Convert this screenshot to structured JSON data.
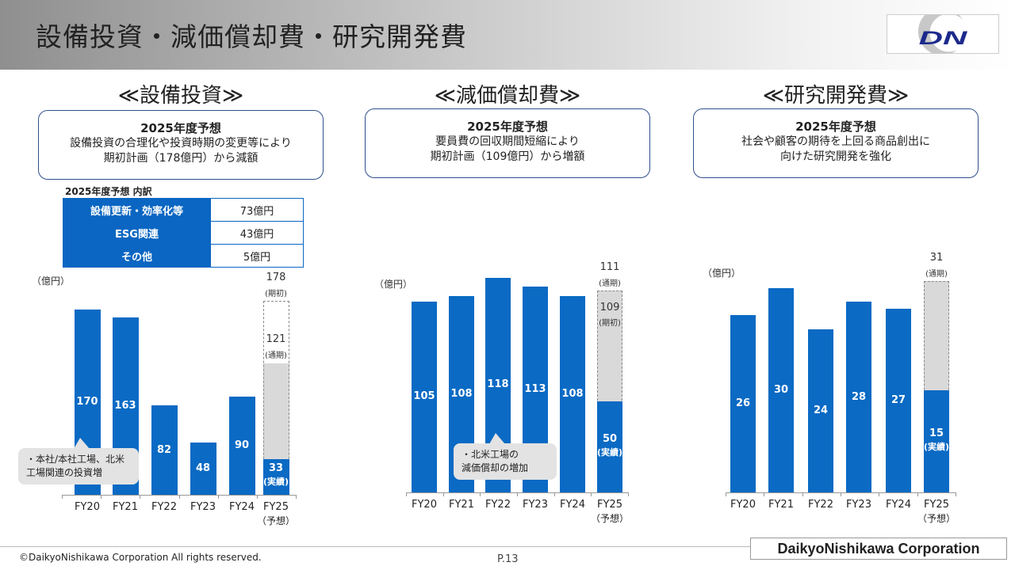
{
  "header": {
    "title": "設備投資・減価償却費・研究開発費",
    "logo_text": "DN"
  },
  "sections": [
    {
      "heading": "≪設備投資≫",
      "box_title": "2025年度予想",
      "box_lines": [
        "設備投資の合理化や投資時期の変更等により",
        "期初計画（178億円）から減額"
      ]
    },
    {
      "heading": "≪減価償却費≫",
      "box_title": "2025年度予想",
      "box_lines": [
        "要員費の回収期間短縮により",
        "期初計画（109億円）から増額"
      ]
    },
    {
      "heading": "≪研究開発費≫",
      "box_title": "2025年度予想",
      "box_lines": [
        "社会や顧客の期待を上回る商品創出に",
        "向けた研究開発を強化"
      ]
    }
  ],
  "breakdown": {
    "title": "2025年度予想 内訳",
    "rows": [
      {
        "label": "設備更新・効率化等",
        "value": "73億円"
      },
      {
        "label": "ESG関連",
        "value": "43億円"
      },
      {
        "label": "その他",
        "value": "5億円"
      }
    ]
  },
  "chart_data": [
    {
      "type": "bar",
      "title": "設備投資",
      "unit": "（億円）",
      "categories": [
        "FY20",
        "FY21",
        "FY22",
        "FY23",
        "FY24",
        "FY25"
      ],
      "fy25_sub": "（予想）",
      "values": [
        170,
        163,
        82,
        48,
        90,
        33
      ],
      "fy25_actual_label": "(実績)",
      "fy25_outer": {
        "value": 178,
        "label": "(期初)"
      },
      "fy25_inner": {
        "value": 121,
        "label": "(通期)"
      },
      "callout": [
        "・本社/本社工場、北米",
        "工場関連の投資増"
      ]
    },
    {
      "type": "bar",
      "title": "減価償却費",
      "unit": "（億円）",
      "categories": [
        "FY20",
        "FY21",
        "FY22",
        "FY23",
        "FY24",
        "FY25"
      ],
      "fy25_sub": "（予想）",
      "values": [
        105,
        108,
        118,
        113,
        108,
        50
      ],
      "fy25_actual_label": "(実績)",
      "fy25_outer": {
        "value": 111,
        "label": "(通期)"
      },
      "fy25_inner": {
        "value": 109,
        "label": "(期初)"
      },
      "callout": [
        "・北米工場の",
        "減価償却の増加"
      ]
    },
    {
      "type": "bar",
      "title": "研究開発費",
      "unit": "（億円）",
      "categories": [
        "FY20",
        "FY21",
        "FY22",
        "FY23",
        "FY24",
        "FY25"
      ],
      "fy25_sub": "（予想）",
      "values": [
        26,
        30,
        24,
        28,
        27,
        15
      ],
      "fy25_actual_label": "(実績)",
      "fy25_outer": {
        "value": 31,
        "label": "(通期)"
      }
    }
  ],
  "footer": {
    "copyright": "©DaikyoNishikawa Corporation All rights reserved.",
    "page": "P.13",
    "company": "DaikyoNishikawa Corporation"
  }
}
